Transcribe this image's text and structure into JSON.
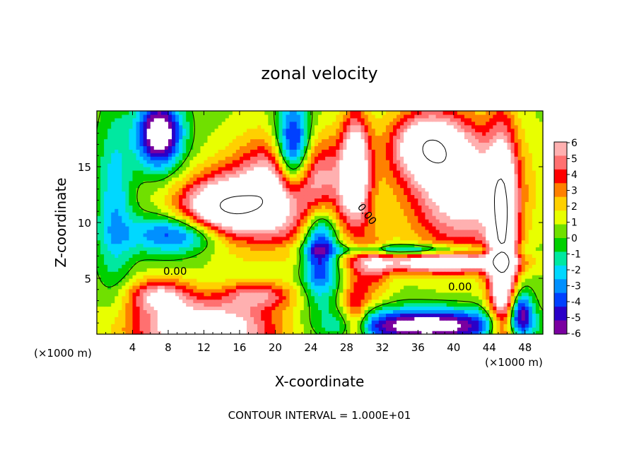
{
  "chart_data": {
    "type": "heatmap",
    "title": "zonal velocity",
    "xlabel": "X-coordinate",
    "ylabel": "Z-coordinate",
    "x_unit": "(×1000 m)",
    "x_unit_right": "(×1000 m)",
    "xlim": [
      0,
      50
    ],
    "ylim": [
      0,
      20
    ],
    "x_ticks": [
      4,
      8,
      12,
      16,
      20,
      24,
      28,
      32,
      36,
      40,
      44,
      48
    ],
    "y_ticks": [
      5,
      10,
      15
    ],
    "colorbar": {
      "ticks": [
        6,
        5,
        4,
        3,
        2,
        1,
        0,
        -1,
        -2,
        -3,
        -4,
        -5,
        -6
      ],
      "range": [
        -6,
        6
      ]
    },
    "contour_labels": [
      "0.00",
      "0.00",
      "0.00"
    ],
    "footer": "CONTOUR INTERVAL = 1.000E+01",
    "palette": [
      "#7a00a0",
      "#2a00c8",
      "#0040ff",
      "#0090ff",
      "#00d8ff",
      "#00e8a0",
      "#00d000",
      "#70e000",
      "#e8ff00",
      "#ffd000",
      "#ff8000",
      "#ff0000",
      "#ff7070",
      "#ffb0b0"
    ],
    "out_of_range_color": "#ffffff",
    "grid": false,
    "legend": "colorbar-right"
  }
}
